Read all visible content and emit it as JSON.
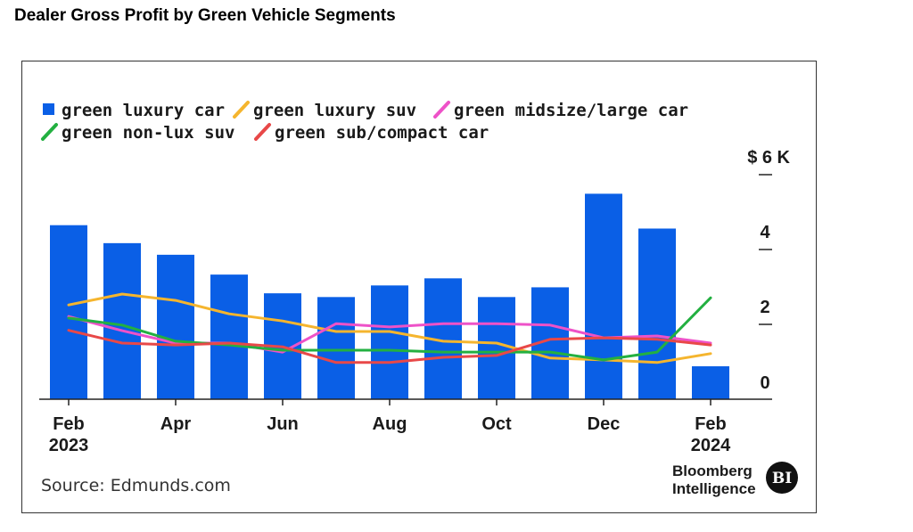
{
  "page_title": "Dealer Gross Profit by Green Vehicle Segments",
  "source": "Source: Edmunds.com",
  "brand": {
    "line1": "Bloomberg",
    "line2": "Intelligence",
    "badge": "BI"
  },
  "chart_data": {
    "type": "bar",
    "title": "Dealer Gross Profit by Green Vehicle Segments",
    "x": [
      "Feb 2023",
      "Mar 2023",
      "Apr 2023",
      "May 2023",
      "Jun 2023",
      "Jul 2023",
      "Aug 2023",
      "Sep 2023",
      "Oct 2023",
      "Nov 2023",
      "Dec 2023",
      "Jan 2024",
      "Feb 2024"
    ],
    "x_tick_labels": [
      {
        "index": 0,
        "line1": "Feb",
        "line2": "2023"
      },
      {
        "index": 2,
        "line1": "Apr",
        "line2": ""
      },
      {
        "index": 4,
        "line1": "Jun",
        "line2": ""
      },
      {
        "index": 6,
        "line1": "Aug",
        "line2": ""
      },
      {
        "index": 8,
        "line1": "Oct",
        "line2": ""
      },
      {
        "index": 10,
        "line1": "Dec",
        "line2": ""
      },
      {
        "index": 12,
        "line1": "Feb",
        "line2": "2024"
      }
    ],
    "y_ticks": [
      {
        "value": 0,
        "label": "0"
      },
      {
        "value": 2,
        "label": "2"
      },
      {
        "value": 4,
        "label": "4"
      },
      {
        "value": 6,
        "label": "$ 6 K"
      }
    ],
    "ylim": [
      0,
      6
    ],
    "grid": false,
    "legend_position": "top-left",
    "series": [
      {
        "name": "green luxury car",
        "kind": "bar",
        "color": "#0a5fe6",
        "values": [
          4.65,
          4.17,
          3.86,
          3.33,
          2.83,
          2.73,
          3.04,
          3.23,
          2.73,
          2.99,
          5.49,
          4.56,
          0.88
        ]
      },
      {
        "name": "green luxury suv",
        "kind": "line",
        "color": "#f5b52e",
        "values": [
          2.52,
          2.81,
          2.64,
          2.28,
          2.09,
          1.81,
          1.81,
          1.55,
          1.5,
          1.1,
          1.05,
          0.98,
          1.22
        ]
      },
      {
        "name": "green midsize/large car",
        "kind": "line",
        "color": "#ee52c8",
        "values": [
          2.21,
          1.83,
          1.5,
          1.5,
          1.26,
          2.02,
          1.93,
          2.02,
          2.02,
          1.98,
          1.64,
          1.69,
          1.5
        ]
      },
      {
        "name": "green non-lux suv",
        "kind": "line",
        "color": "#23b041",
        "values": [
          2.17,
          1.98,
          1.55,
          1.45,
          1.31,
          1.31,
          1.31,
          1.26,
          1.26,
          1.26,
          1.05,
          1.26,
          2.71
        ]
      },
      {
        "name": "green sub/compact car",
        "kind": "line",
        "color": "#e84848",
        "values": [
          1.84,
          1.5,
          1.45,
          1.5,
          1.4,
          0.98,
          0.98,
          1.12,
          1.17,
          1.6,
          1.64,
          1.6,
          1.45
        ]
      }
    ]
  }
}
